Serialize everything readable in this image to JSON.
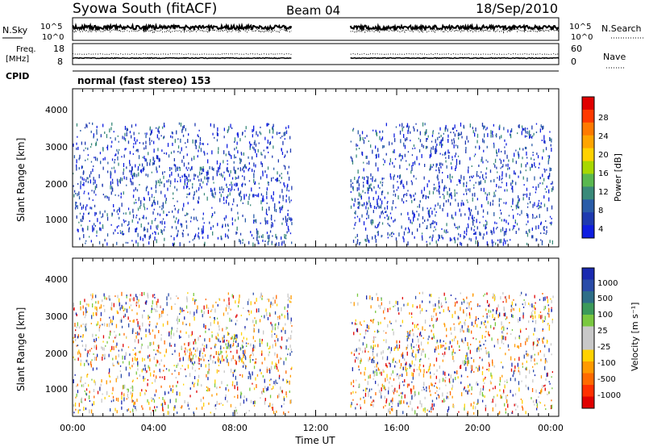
{
  "header": {
    "station": "Syowa South (fitACF)",
    "beam": "Beam 04",
    "date": "18/Sep/2010"
  },
  "noise_panel": {
    "left_label": "N.Sky",
    "left_ticks": [
      "10^5",
      "10^0"
    ],
    "right_label": "N.Search",
    "right_ticks": [
      "10^5",
      "10^0"
    ]
  },
  "freq_panel": {
    "left_label_line1": "Freq.",
    "left_label_line2": "[MHz]",
    "left_ticks": [
      "18",
      "8"
    ],
    "right_label": "Nave",
    "right_ticks": [
      "60",
      "0"
    ]
  },
  "cpid_panel": {
    "label": "CPID",
    "mode": "normal (fast stereo) 153"
  },
  "power_panel": {
    "ylabel": "Slant Range [km]",
    "yticks": [
      "4000",
      "3000",
      "2000",
      "1000"
    ],
    "colorbar_label": "Power [dB]",
    "colorbar_ticks": [
      "28",
      "24",
      "20",
      "16",
      "12",
      "8",
      "4"
    ],
    "colorbar_colors": [
      "#e00000",
      "#ff3a00",
      "#ff7a00",
      "#ffa500",
      "#ffd200",
      "#a8d800",
      "#5ab850",
      "#3a8a7a",
      "#2a5ca8",
      "#1e3ab0",
      "#0f1ee0"
    ]
  },
  "velocity_panel": {
    "ylabel": "Slant Range [km]",
    "yticks": [
      "4000",
      "3000",
      "2000",
      "1000"
    ],
    "colorbar_label": "Velocity [m s⁻¹]",
    "colorbar_ticks": [
      "1000",
      "500",
      "100",
      "25",
      "-25",
      "-100",
      "-500",
      "-1000"
    ],
    "colorbar_colors": [
      "#1a2ab0",
      "#2a4ca8",
      "#2e6e88",
      "#3c9a5a",
      "#7ac840",
      "#c8c8c8",
      "#c8c8c8",
      "#ffd200",
      "#ff9a00",
      "#ff6a00",
      "#ff3000",
      "#e00000"
    ]
  },
  "xaxis": {
    "label": "Time UT",
    "ticks": [
      "00:00",
      "04:00",
      "08:00",
      "12:00",
      "16:00",
      "20:00",
      "00:00"
    ]
  },
  "chart_data": {
    "type": "heatmap",
    "title": "Syowa South (fitACF)  Beam 04  18/Sep/2010",
    "xlabel": "Time UT",
    "xlim_hours": [
      0,
      24
    ],
    "ylabel": "Slant Range [km]",
    "ylim_km": [
      180,
      4500
    ],
    "data_gap_hours": [
      10.8,
      13.7
    ],
    "panels": [
      {
        "name": "Power",
        "unit": "dB",
        "clim": [
          0,
          30
        ]
      },
      {
        "name": "Velocity",
        "unit": "m s⁻¹",
        "clim": [
          -1000,
          1000
        ]
      }
    ],
    "cpid": 153,
    "mode": "normal (fast stereo)"
  }
}
